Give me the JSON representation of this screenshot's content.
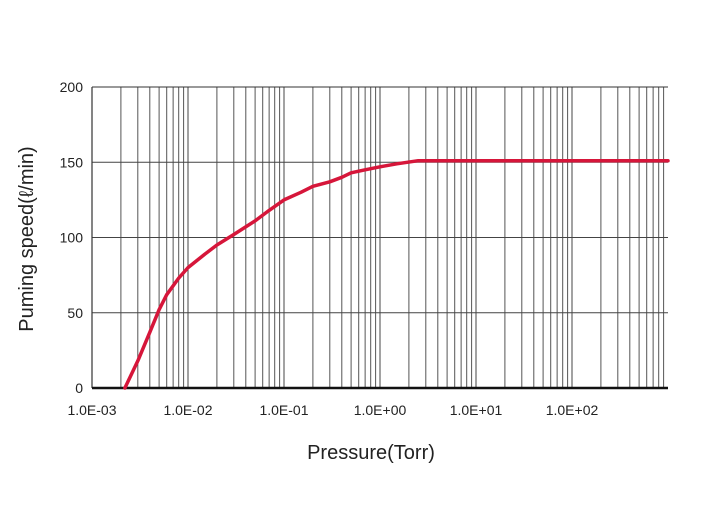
{
  "chart_data": {
    "type": "line",
    "x_scale": "log",
    "xlabel": "Pressure(Torr)",
    "ylabel": "Puming speed(ℓ/min)",
    "xlim": [
      0.001,
      1000
    ],
    "ylim": [
      0,
      200
    ],
    "x_ticks": [
      {
        "value": 0.001,
        "label": "1.0E-03"
      },
      {
        "value": 0.01,
        "label": "1.0E-02"
      },
      {
        "value": 0.1,
        "label": "1.0E-01"
      },
      {
        "value": 1,
        "label": "1.0E+00"
      },
      {
        "value": 10,
        "label": "1.0E+01"
      },
      {
        "value": 100,
        "label": "1.0E+02"
      }
    ],
    "y_ticks": [
      {
        "value": 0,
        "label": "0"
      },
      {
        "value": 50,
        "label": "50"
      },
      {
        "value": 100,
        "label": "100"
      },
      {
        "value": 150,
        "label": "150"
      },
      {
        "value": 200,
        "label": "200"
      }
    ],
    "grid": true,
    "series": [
      {
        "color": "#d6163a",
        "x": [
          0.0022,
          0.003,
          0.004,
          0.005,
          0.006,
          0.008,
          0.01,
          0.015,
          0.02,
          0.03,
          0.05,
          0.07,
          0.1,
          0.15,
          0.2,
          0.3,
          0.4,
          0.5,
          0.7,
          1.0,
          1.5,
          2.5,
          5,
          10,
          100,
          1000
        ],
        "y": [
          0,
          18,
          37,
          52,
          62,
          73,
          80,
          89,
          95,
          102,
          111,
          118,
          125,
          130,
          134,
          137,
          140,
          143,
          145,
          147,
          149,
          151,
          151,
          151,
          151,
          151
        ]
      }
    ]
  }
}
